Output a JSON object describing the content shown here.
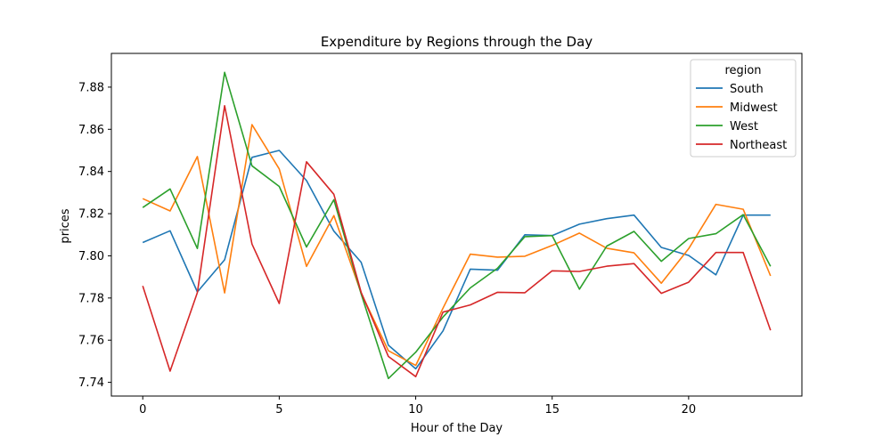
{
  "chart_data": {
    "type": "line",
    "title": "Expenditure by Regions through the Day",
    "xlabel": "Hour of the Day",
    "ylabel": "prices",
    "xlim": [
      -1.15,
      24.15
    ],
    "ylim": [
      7.7335,
      7.896
    ],
    "xticks": [
      0,
      5,
      10,
      15,
      20
    ],
    "yticks": [
      7.74,
      7.76,
      7.78,
      7.8,
      7.82,
      7.84,
      7.86,
      7.88
    ],
    "grid": false,
    "legend": {
      "title": "region",
      "position": "top-right"
    },
    "x": [
      0,
      1,
      2,
      3,
      4,
      5,
      6,
      7,
      8,
      9,
      10,
      11,
      12,
      13,
      14,
      15,
      16,
      17,
      18,
      19,
      20,
      21,
      22,
      23
    ],
    "series": [
      {
        "name": "South",
        "color": "#1f77b4",
        "values": [
          7.8063,
          7.8119,
          7.7829,
          7.7981,
          7.8467,
          7.85,
          7.8357,
          7.8117,
          7.797,
          7.7576,
          7.7464,
          7.7644,
          7.7937,
          7.7932,
          7.81,
          7.8096,
          7.815,
          7.8176,
          7.8193,
          7.804,
          7.8002,
          7.791,
          7.8193,
          7.8193
        ]
      },
      {
        "name": "Midwest",
        "color": "#ff7f0e",
        "values": [
          7.8271,
          7.8213,
          7.8471,
          7.7824,
          7.8622,
          7.8412,
          7.795,
          7.8191,
          7.7824,
          7.755,
          7.748,
          7.7752,
          7.8008,
          7.7994,
          7.7998,
          7.8049,
          7.8108,
          7.8036,
          7.8014,
          7.787,
          7.8034,
          7.8244,
          7.8221,
          7.7905
        ]
      },
      {
        "name": "West",
        "color": "#2ca02c",
        "values": [
          7.8229,
          7.8317,
          7.8035,
          7.887,
          7.8427,
          7.8329,
          7.8042,
          7.8266,
          7.782,
          7.7418,
          7.7543,
          7.771,
          7.7848,
          7.7941,
          7.8091,
          7.8096,
          7.7842,
          7.8046,
          7.8116,
          7.7974,
          7.8082,
          7.8105,
          7.8195,
          7.795
        ]
      },
      {
        "name": "Northeast",
        "color": "#d62728",
        "values": [
          7.7857,
          7.7453,
          7.7826,
          7.8712,
          7.8056,
          7.7774,
          7.8446,
          7.8292,
          7.7827,
          7.7523,
          7.7427,
          7.7733,
          7.7767,
          7.7827,
          7.7825,
          7.7929,
          7.7926,
          7.7951,
          7.7963,
          7.7822,
          7.7875,
          7.8016,
          7.8016,
          7.7647
        ]
      }
    ]
  }
}
